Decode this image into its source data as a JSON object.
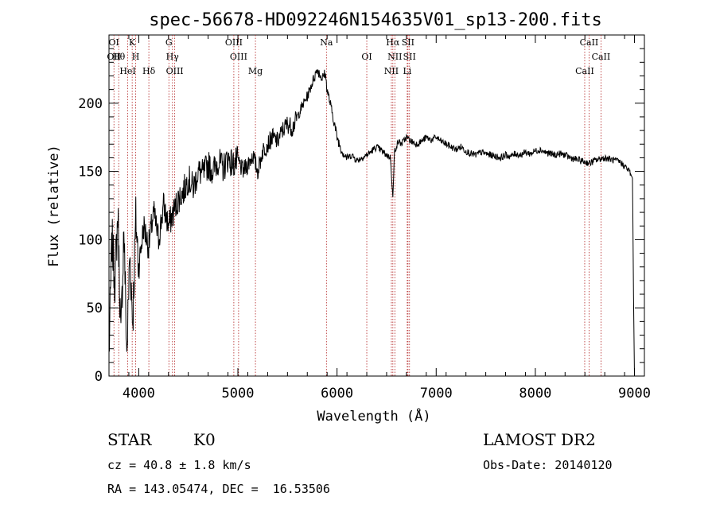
{
  "chart_data": {
    "type": "line",
    "title": "spec-56678-HD092246N154635V01_sp13-200.fits",
    "xlabel": "Wavelength (Å)",
    "ylabel": "Flux (relative)",
    "xlim": [
      3700,
      9100
    ],
    "ylim": [
      0,
      250
    ],
    "x_ticks": [
      4000,
      5000,
      6000,
      7000,
      8000,
      9000
    ],
    "y_ticks": [
      0,
      50,
      100,
      150,
      200
    ],
    "x_tick_labels": [
      "4000",
      "5000",
      "6000",
      "7000",
      "8000",
      "9000"
    ],
    "y_tick_labels": [
      "0",
      "50",
      "100",
      "150",
      "200"
    ],
    "grid": false,
    "series": [
      {
        "x": [
          3700,
          3730,
          3760,
          3790,
          3820,
          3850,
          3880,
          3910,
          3940,
          3970,
          4000,
          4050,
          4100,
          4150,
          4200,
          4250,
          4300,
          4350,
          4400,
          4450,
          4500,
          4550,
          4600,
          4650,
          4700,
          4750,
          4800,
          4850,
          4900,
          4950,
          5000,
          5050,
          5100,
          5150,
          5200,
          5250,
          5300,
          5350,
          5400,
          5450,
          5500,
          5550,
          5600,
          5650,
          5700,
          5750,
          5800,
          5850,
          5880,
          5900,
          5930,
          5960,
          6000,
          6050,
          6100,
          6150,
          6200,
          6250,
          6300,
          6350,
          6400,
          6450,
          6500,
          6540,
          6563,
          6580,
          6620,
          6650,
          6700,
          6750,
          6800,
          6850,
          6900,
          6950,
          7000,
          7050,
          7100,
          7150,
          7200,
          7250,
          7300,
          7350,
          7400,
          7450,
          7500,
          7550,
          7600,
          7650,
          7700,
          7750,
          7800,
          7850,
          7900,
          7950,
          8000,
          8050,
          8100,
          8150,
          8200,
          8250,
          8300,
          8350,
          8400,
          8450,
          8500,
          8550,
          8600,
          8650,
          8700,
          8750,
          8800,
          8850,
          8900,
          8950,
          8980,
          8990,
          9000
        ],
        "y": [
          15,
          100,
          70,
          120,
          25,
          110,
          15,
          90,
          40,
          115,
          80,
          110,
          95,
          120,
          100,
          125,
          110,
          120,
          130,
          135,
          145,
          138,
          150,
          148,
          155,
          150,
          158,
          152,
          160,
          155,
          158,
          150,
          155,
          162,
          150,
          165,
          170,
          175,
          172,
          180,
          185,
          182,
          190,
          198,
          205,
          215,
          225,
          218,
          222,
          210,
          200,
          190,
          175,
          165,
          160,
          162,
          158,
          160,
          162,
          165,
          168,
          165,
          162,
          160,
          130,
          165,
          172,
          170,
          175,
          172,
          170,
          172,
          175,
          173,
          175,
          172,
          170,
          168,
          166,
          168,
          165,
          163,
          162,
          164,
          163,
          162,
          161,
          160,
          162,
          161,
          163,
          162,
          164,
          163,
          165,
          166,
          164,
          163,
          162,
          163,
          162,
          160,
          159,
          158,
          157,
          156,
          158,
          159,
          160,
          159,
          158,
          157,
          154,
          150,
          145,
          60,
          0
        ]
      }
    ],
    "lines": [
      {
        "x": 3750,
        "labels": [
          "OI",
          "OII"
        ]
      },
      {
        "x": 3798,
        "labels": [
          "Hθ"
        ]
      },
      {
        "x": 3889,
        "labels": [
          "HeI"
        ]
      },
      {
        "x": 3934,
        "labels": [
          "K"
        ]
      },
      {
        "x": 3969,
        "labels": [
          "H"
        ]
      },
      {
        "x": 4102,
        "labels": [
          "Hδ"
        ]
      },
      {
        "x": 4304,
        "labels": [
          "G"
        ]
      },
      {
        "x": 4340,
        "labels": [
          "Hγ"
        ]
      },
      {
        "x": 4363,
        "labels": [
          "OIII"
        ]
      },
      {
        "x": 4959,
        "labels": [
          "OIII"
        ]
      },
      {
        "x": 5007,
        "labels": [
          "OIII"
        ]
      },
      {
        "x": 5177,
        "labels": [
          "Mg"
        ]
      },
      {
        "x": 5893,
        "labels": [
          "Na"
        ]
      },
      {
        "x": 6300,
        "labels": [
          "OI"
        ]
      },
      {
        "x": 6548,
        "labels": [
          "NII"
        ]
      },
      {
        "x": 6563,
        "labels": [
          "Hα"
        ]
      },
      {
        "x": 6583,
        "labels": [
          "NII"
        ]
      },
      {
        "x": 6708,
        "labels": [
          "Li"
        ]
      },
      {
        "x": 6716,
        "labels": [
          "SII"
        ]
      },
      {
        "x": 6731,
        "labels": [
          "SII"
        ]
      },
      {
        "x": 8498,
        "labels": [
          "CaII"
        ]
      },
      {
        "x": 8542,
        "labels": [
          "CaII"
        ]
      },
      {
        "x": 8662,
        "labels": [
          "CaII"
        ]
      }
    ]
  },
  "info": {
    "class": "STAR",
    "subclass": "K0",
    "survey": "LAMOST DR2",
    "cz": "cz = 40.8 ± 1.8 km/s",
    "obs_date": "Obs-Date: 20140120",
    "radec": "RA = 143.05474, DEC =  16.53506"
  }
}
